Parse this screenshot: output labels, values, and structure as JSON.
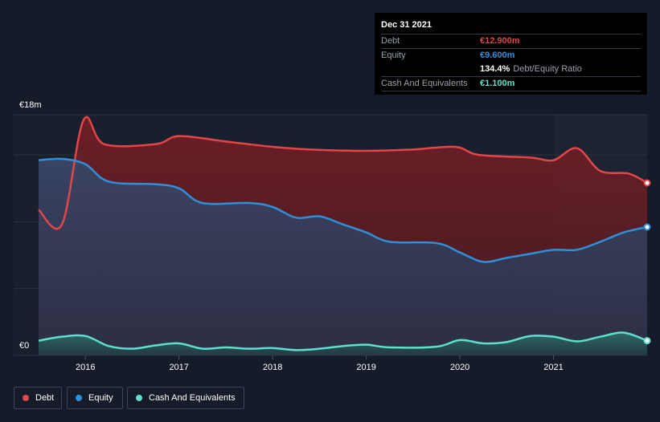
{
  "chart_data": {
    "type": "area",
    "currency_unit": "€m",
    "y_top_label": "€18m",
    "y_bottom_label": "€0",
    "ylim": [
      0,
      18
    ],
    "xlim": [
      2015.5,
      2022.0
    ],
    "x_ticks": [
      2016,
      2017,
      2018,
      2019,
      2020,
      2021
    ],
    "x_tick_labels": [
      "2016",
      "2017",
      "2018",
      "2019",
      "2020",
      "2021"
    ],
    "colors": {
      "debt": "#e0464a",
      "equity": "#2f8fd8",
      "cash": "#5fe0cc"
    },
    "series": [
      {
        "name": "Debt",
        "key": "debt",
        "points": [
          [
            2015.5,
            10.9
          ],
          [
            2015.75,
            9.8
          ],
          [
            2015.98,
            17.6
          ],
          [
            2016.2,
            15.8
          ],
          [
            2016.75,
            15.8
          ],
          [
            2017.0,
            16.4
          ],
          [
            2017.5,
            16.0
          ],
          [
            2018.0,
            15.6
          ],
          [
            2018.4,
            15.4
          ],
          [
            2019.0,
            15.3
          ],
          [
            2019.5,
            15.4
          ],
          [
            2019.95,
            15.6
          ],
          [
            2020.2,
            15.0
          ],
          [
            2020.75,
            14.8
          ],
          [
            2021.0,
            14.6
          ],
          [
            2021.25,
            15.5
          ],
          [
            2021.5,
            13.8
          ],
          [
            2021.8,
            13.6
          ],
          [
            2022.0,
            12.9
          ]
        ]
      },
      {
        "name": "Equity",
        "key": "equity",
        "points": [
          [
            2015.5,
            14.6
          ],
          [
            2015.75,
            14.7
          ],
          [
            2016.0,
            14.3
          ],
          [
            2016.25,
            13.0
          ],
          [
            2016.75,
            12.8
          ],
          [
            2017.0,
            12.5
          ],
          [
            2017.25,
            11.4
          ],
          [
            2017.75,
            11.4
          ],
          [
            2018.0,
            11.1
          ],
          [
            2018.25,
            10.3
          ],
          [
            2018.5,
            10.4
          ],
          [
            2018.75,
            9.8
          ],
          [
            2019.0,
            9.2
          ],
          [
            2019.25,
            8.5
          ],
          [
            2019.75,
            8.4
          ],
          [
            2020.0,
            7.7
          ],
          [
            2020.25,
            7.0
          ],
          [
            2020.5,
            7.3
          ],
          [
            2020.75,
            7.6
          ],
          [
            2021.0,
            7.9
          ],
          [
            2021.25,
            7.9
          ],
          [
            2021.5,
            8.5
          ],
          [
            2021.75,
            9.2
          ],
          [
            2022.0,
            9.6
          ]
        ]
      },
      {
        "name": "Cash And Equivalents",
        "key": "cash",
        "points": [
          [
            2015.5,
            1.1
          ],
          [
            2015.75,
            1.4
          ],
          [
            2016.0,
            1.45
          ],
          [
            2016.25,
            0.7
          ],
          [
            2016.5,
            0.5
          ],
          [
            2016.75,
            0.75
          ],
          [
            2017.0,
            0.9
          ],
          [
            2017.25,
            0.5
          ],
          [
            2017.5,
            0.6
          ],
          [
            2017.75,
            0.5
          ],
          [
            2018.0,
            0.55
          ],
          [
            2018.25,
            0.4
          ],
          [
            2018.5,
            0.5
          ],
          [
            2018.75,
            0.7
          ],
          [
            2019.0,
            0.8
          ],
          [
            2019.25,
            0.6
          ],
          [
            2019.75,
            0.65
          ],
          [
            2020.0,
            1.15
          ],
          [
            2020.25,
            0.9
          ],
          [
            2020.5,
            1.0
          ],
          [
            2020.75,
            1.45
          ],
          [
            2021.0,
            1.4
          ],
          [
            2021.25,
            1.05
          ],
          [
            2021.5,
            1.4
          ],
          [
            2021.75,
            1.7
          ],
          [
            2022.0,
            1.1
          ]
        ]
      }
    ]
  },
  "tooltip": {
    "date": "Dec 31 2021",
    "debt_label": "Debt",
    "debt_value": "€12.900m",
    "equity_label": "Equity",
    "equity_value": "€9.600m",
    "ratio_value": "134.4%",
    "ratio_label": "Debt/Equity Ratio",
    "cash_label": "Cash And Equivalents",
    "cash_value": "€1.100m"
  },
  "legend": {
    "debt": "Debt",
    "equity": "Equity",
    "cash": "Cash And Equivalents"
  }
}
